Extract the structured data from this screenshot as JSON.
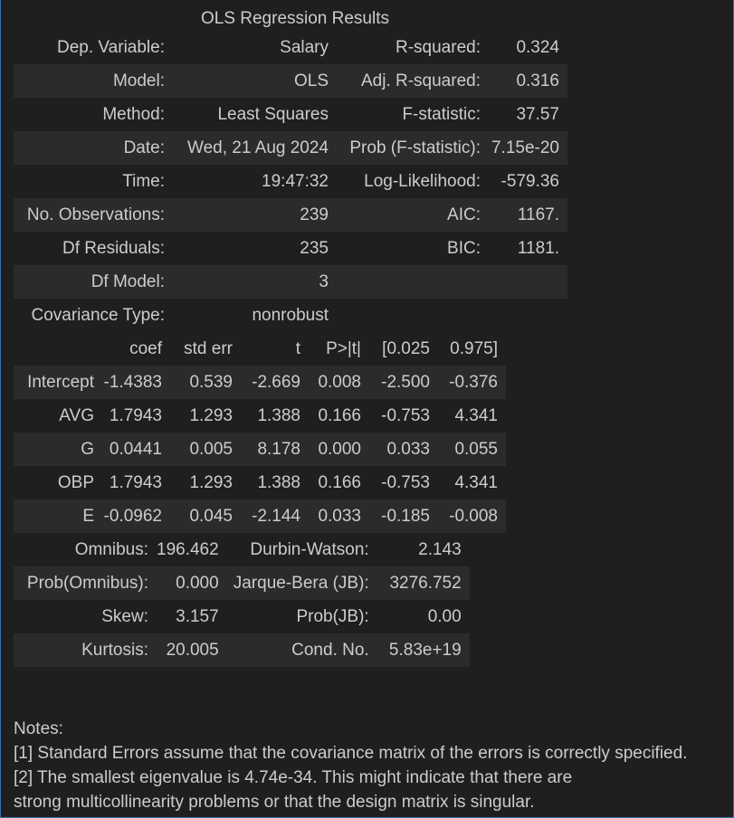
{
  "title": "OLS Regression Results",
  "summary": [
    [
      "Dep. Variable:",
      "Salary",
      "R-squared:",
      "0.324"
    ],
    [
      "Model:",
      "OLS",
      "Adj. R-squared:",
      "0.316"
    ],
    [
      "Method:",
      "Least Squares",
      "F-statistic:",
      "37.57"
    ],
    [
      "Date:",
      "Wed, 21 Aug 2024",
      "Prob (F-statistic):",
      "7.15e-20"
    ],
    [
      "Time:",
      "19:47:32",
      "Log-Likelihood:",
      "-579.36"
    ],
    [
      "No. Observations:",
      "239",
      "AIC:",
      "1167."
    ],
    [
      "Df Residuals:",
      "235",
      "BIC:",
      "1181."
    ],
    [
      "Df Model:",
      "3",
      "",
      ""
    ],
    [
      "Covariance Type:",
      "nonrobust",
      "",
      ""
    ]
  ],
  "coef_table": {
    "headers": [
      "",
      "coef",
      "std err",
      "t",
      "P>|t|",
      "[0.025",
      "0.975]"
    ],
    "rows": [
      [
        "Intercept",
        "-1.4383",
        "0.539",
        "-2.669",
        "0.008",
        "-2.500",
        "-0.376"
      ],
      [
        "AVG",
        "1.7943",
        "1.293",
        "1.388",
        "0.166",
        "-0.753",
        "4.341"
      ],
      [
        "G",
        "0.0441",
        "0.005",
        "8.178",
        "0.000",
        "0.033",
        "0.055"
      ],
      [
        "OBP",
        "1.7943",
        "1.293",
        "1.388",
        "0.166",
        "-0.753",
        "4.341"
      ],
      [
        "E",
        "-0.0962",
        "0.045",
        "-2.144",
        "0.033",
        "-0.185",
        "-0.008"
      ]
    ]
  },
  "diagnostics": [
    [
      "Omnibus:",
      "196.462",
      "Durbin-Watson:",
      "2.143"
    ],
    [
      "Prob(Omnibus):",
      "0.000",
      "Jarque-Bera (JB):",
      "3276.752"
    ],
    [
      "Skew:",
      "3.157",
      "Prob(JB):",
      "0.00"
    ],
    [
      "Kurtosis:",
      "20.005",
      "Cond. No.",
      "5.83e+19"
    ]
  ],
  "notes": [
    "Notes:",
    "[1] Standard Errors assume that the covariance matrix of the errors is correctly specified.",
    "[2] The smallest eigenvalue is 4.74e-34. This might indicate that there are",
    "strong multicollinearity problems or that the design matrix is singular."
  ]
}
